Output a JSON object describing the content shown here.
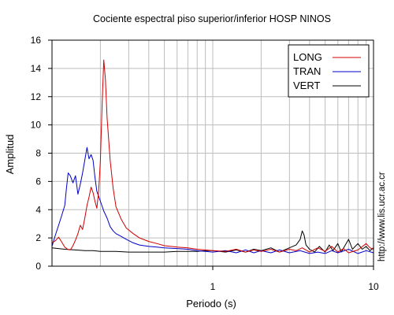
{
  "chart_data": {
    "type": "line",
    "title": "Cociente espectral piso superior/inferior  HOSP NINOS",
    "xlabel": "Periodo (s)",
    "ylabel": "Amplitud",
    "x_scale": "log",
    "xlim": [
      0.1,
      10
    ],
    "ylim": [
      0,
      16
    ],
    "x_ticks": [
      1,
      10
    ],
    "y_ticks": [
      0,
      2,
      4,
      6,
      8,
      10,
      12,
      14,
      16
    ],
    "grid": true,
    "legend_position": "top-right",
    "side_note": "http://www.lis.ucr.ac.cr",
    "series": [
      {
        "name": "LONG",
        "color": "#d00000",
        "points": [
          [
            0.1,
            1.65
          ],
          [
            0.105,
            1.8
          ],
          [
            0.11,
            2.05
          ],
          [
            0.115,
            1.7
          ],
          [
            0.12,
            1.35
          ],
          [
            0.125,
            1.2
          ],
          [
            0.13,
            1.15
          ],
          [
            0.135,
            1.45
          ],
          [
            0.14,
            1.85
          ],
          [
            0.145,
            2.3
          ],
          [
            0.15,
            2.9
          ],
          [
            0.155,
            2.6
          ],
          [
            0.16,
            3.4
          ],
          [
            0.165,
            4.3
          ],
          [
            0.17,
            4.9
          ],
          [
            0.175,
            5.6
          ],
          [
            0.18,
            5.2
          ],
          [
            0.185,
            4.6
          ],
          [
            0.19,
            4.1
          ],
          [
            0.195,
            5.3
          ],
          [
            0.2,
            7.5
          ],
          [
            0.205,
            11.5
          ],
          [
            0.21,
            14.6
          ],
          [
            0.215,
            13.2
          ],
          [
            0.22,
            10.5
          ],
          [
            0.23,
            7.5
          ],
          [
            0.24,
            5.5
          ],
          [
            0.25,
            4.2
          ],
          [
            0.27,
            3.3
          ],
          [
            0.29,
            2.7
          ],
          [
            0.32,
            2.3
          ],
          [
            0.35,
            2.0
          ],
          [
            0.4,
            1.75
          ],
          [
            0.45,
            1.6
          ],
          [
            0.5,
            1.45
          ],
          [
            0.55,
            1.4
          ],
          [
            0.6,
            1.35
          ],
          [
            0.7,
            1.3
          ],
          [
            0.8,
            1.2
          ],
          [
            0.9,
            1.15
          ],
          [
            1.0,
            1.1
          ],
          [
            1.2,
            1.05
          ],
          [
            1.4,
            1.2
          ],
          [
            1.6,
            1.0
          ],
          [
            1.8,
            1.15
          ],
          [
            2.0,
            1.05
          ],
          [
            2.3,
            1.2
          ],
          [
            2.6,
            1.0
          ],
          [
            3.0,
            1.2
          ],
          [
            3.3,
            1.1
          ],
          [
            3.6,
            1.3
          ],
          [
            4.0,
            1.0
          ],
          [
            4.5,
            1.3
          ],
          [
            5.0,
            1.05
          ],
          [
            5.5,
            1.4
          ],
          [
            6.0,
            1.0
          ],
          [
            6.5,
            1.25
          ],
          [
            7.0,
            0.95
          ],
          [
            8.0,
            1.15
          ],
          [
            9.0,
            1.6
          ],
          [
            9.5,
            1.3
          ],
          [
            10.0,
            1.2
          ]
        ]
      },
      {
        "name": "TRAN",
        "color": "#0000c8",
        "points": [
          [
            0.1,
            1.4
          ],
          [
            0.105,
            2.2
          ],
          [
            0.11,
            2.9
          ],
          [
            0.115,
            3.6
          ],
          [
            0.12,
            4.3
          ],
          [
            0.123,
            5.5
          ],
          [
            0.126,
            6.6
          ],
          [
            0.13,
            6.4
          ],
          [
            0.135,
            5.9
          ],
          [
            0.14,
            6.4
          ],
          [
            0.145,
            5.1
          ],
          [
            0.15,
            5.8
          ],
          [
            0.155,
            6.6
          ],
          [
            0.16,
            7.5
          ],
          [
            0.165,
            8.4
          ],
          [
            0.17,
            7.6
          ],
          [
            0.175,
            7.9
          ],
          [
            0.18,
            7.5
          ],
          [
            0.185,
            6.3
          ],
          [
            0.19,
            5.3
          ],
          [
            0.2,
            4.6
          ],
          [
            0.21,
            3.9
          ],
          [
            0.22,
            3.4
          ],
          [
            0.23,
            2.8
          ],
          [
            0.24,
            2.5
          ],
          [
            0.25,
            2.3
          ],
          [
            0.27,
            2.1
          ],
          [
            0.29,
            1.9
          ],
          [
            0.32,
            1.65
          ],
          [
            0.35,
            1.5
          ],
          [
            0.4,
            1.4
          ],
          [
            0.45,
            1.35
          ],
          [
            0.5,
            1.3
          ],
          [
            0.6,
            1.25
          ],
          [
            0.7,
            1.2
          ],
          [
            0.8,
            1.1
          ],
          [
            0.9,
            1.05
          ],
          [
            1.0,
            1.0
          ],
          [
            1.2,
            1.1
          ],
          [
            1.4,
            0.95
          ],
          [
            1.6,
            1.15
          ],
          [
            1.8,
            0.95
          ],
          [
            2.0,
            1.1
          ],
          [
            2.3,
            0.95
          ],
          [
            2.6,
            1.15
          ],
          [
            3.0,
            0.95
          ],
          [
            3.5,
            1.1
          ],
          [
            4.0,
            0.9
          ],
          [
            4.5,
            1.0
          ],
          [
            5.0,
            0.9
          ],
          [
            5.5,
            1.1
          ],
          [
            6.0,
            0.95
          ],
          [
            7.0,
            1.2
          ],
          [
            8.0,
            0.9
          ],
          [
            9.0,
            1.1
          ],
          [
            10.0,
            0.95
          ]
        ]
      },
      {
        "name": "VERT",
        "color": "#000000",
        "points": [
          [
            0.1,
            1.3
          ],
          [
            0.12,
            1.2
          ],
          [
            0.14,
            1.15
          ],
          [
            0.16,
            1.1
          ],
          [
            0.18,
            1.1
          ],
          [
            0.2,
            1.05
          ],
          [
            0.25,
            1.05
          ],
          [
            0.3,
            1.0
          ],
          [
            0.4,
            1.0
          ],
          [
            0.5,
            1.0
          ],
          [
            0.6,
            1.05
          ],
          [
            0.7,
            1.05
          ],
          [
            0.8,
            1.05
          ],
          [
            0.9,
            1.1
          ],
          [
            1.0,
            1.1
          ],
          [
            1.2,
            1.0
          ],
          [
            1.4,
            1.15
          ],
          [
            1.6,
            1.0
          ],
          [
            1.8,
            1.2
          ],
          [
            2.0,
            1.1
          ],
          [
            2.3,
            1.3
          ],
          [
            2.6,
            1.0
          ],
          [
            3.0,
            1.3
          ],
          [
            3.3,
            1.5
          ],
          [
            3.5,
            1.9
          ],
          [
            3.6,
            2.5
          ],
          [
            3.7,
            2.2
          ],
          [
            3.8,
            1.5
          ],
          [
            4.0,
            1.2
          ],
          [
            4.3,
            1.0
          ],
          [
            4.6,
            1.4
          ],
          [
            5.0,
            1.0
          ],
          [
            5.3,
            1.5
          ],
          [
            5.6,
            1.1
          ],
          [
            6.0,
            1.6
          ],
          [
            6.3,
            1.0
          ],
          [
            6.6,
            1.4
          ],
          [
            7.0,
            1.9
          ],
          [
            7.4,
            1.2
          ],
          [
            8.0,
            1.6
          ],
          [
            8.5,
            1.2
          ],
          [
            9.0,
            1.4
          ],
          [
            9.5,
            1.1
          ],
          [
            10.0,
            1.3
          ]
        ]
      }
    ]
  }
}
